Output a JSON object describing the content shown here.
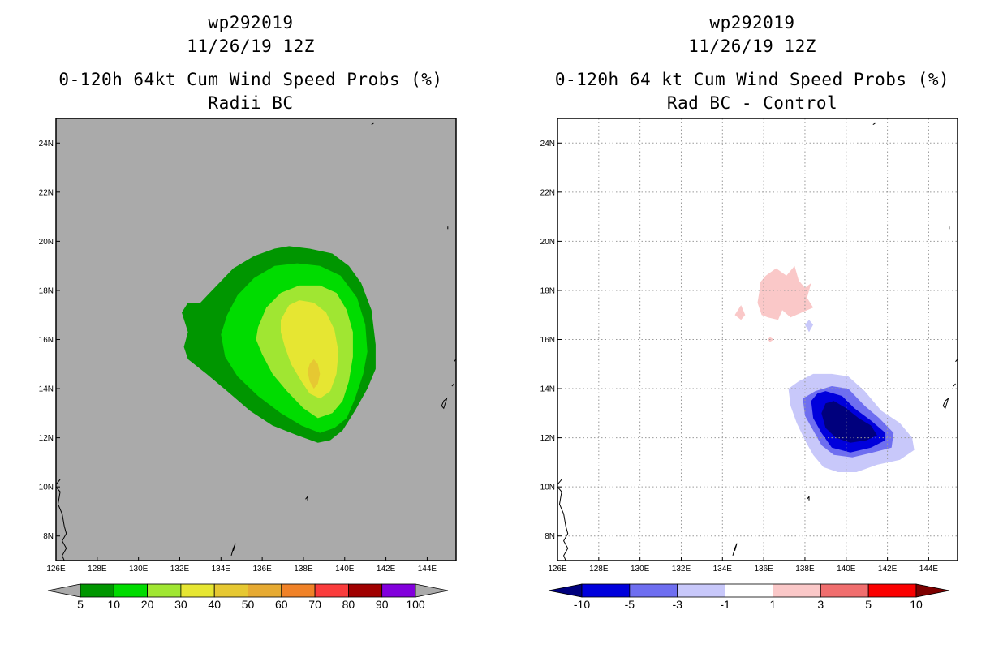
{
  "panels": [
    {
      "storm_id": "wp292019",
      "datetime": "11/26/19 12Z",
      "product": "0-120h 64kt Cum Wind Speed Probs (%)",
      "subtitle": "Radii BC"
    },
    {
      "storm_id": "wp292019",
      "datetime": "11/26/19 12Z",
      "product": "0-120h 64 kt Cum Wind Speed Probs (%)",
      "subtitle": "Rad BC - Control"
    }
  ],
  "chart_data": [
    {
      "type": "filled-contour-map",
      "title": "0-120h 64kt Cum Wind Speed Probs (%)",
      "subtitle": "Radii BC",
      "x_ticks": [
        "126E",
        "128E",
        "130E",
        "132E",
        "134E",
        "136E",
        "138E",
        "140E",
        "142E",
        "144E"
      ],
      "y_ticks": [
        "8N",
        "10N",
        "12N",
        "14N",
        "16N",
        "18N",
        "20N",
        "22N",
        "24N"
      ],
      "xlim": [
        126,
        145.4
      ],
      "ylim": [
        7,
        25
      ],
      "grid": false,
      "background": "#aaaaaa",
      "colorbar": {
        "labels": [
          "5",
          "10",
          "20",
          "30",
          "40",
          "50",
          "60",
          "70",
          "80",
          "90",
          "100"
        ],
        "colors": [
          "#009600",
          "#00dc00",
          "#a0e632",
          "#e6e632",
          "#e6c832",
          "#e6aa32",
          "#f08228",
          "#fa3c3c",
          "#a00000",
          "#8200dc"
        ],
        "end_color": "#aaaaaa"
      },
      "contours": [
        {
          "level": "5-10",
          "color": "#009600",
          "lonlat": [
            [
              133.0,
              17.5
            ],
            [
              133.8,
              18.2
            ],
            [
              134.6,
              18.9
            ],
            [
              135.6,
              19.4
            ],
            [
              136.6,
              19.7
            ],
            [
              137.3,
              19.8
            ],
            [
              138.3,
              19.7
            ],
            [
              139.4,
              19.5
            ],
            [
              140.2,
              19.0
            ],
            [
              140.8,
              18.3
            ],
            [
              141.3,
              17.2
            ],
            [
              141.5,
              15.8
            ],
            [
              141.5,
              14.8
            ],
            [
              141.1,
              14.0
            ],
            [
              140.5,
              13.1
            ],
            [
              139.9,
              12.3
            ],
            [
              139.3,
              11.9
            ],
            [
              138.7,
              11.8
            ],
            [
              137.7,
              12.1
            ],
            [
              136.5,
              12.5
            ],
            [
              135.4,
              13.1
            ],
            [
              134.3,
              13.9
            ],
            [
              133.3,
              14.6
            ],
            [
              132.4,
              15.2
            ],
            [
              132.2,
              15.7
            ],
            [
              132.4,
              16.3
            ],
            [
              132.1,
              17.1
            ],
            [
              132.4,
              17.5
            ]
          ]
        },
        {
          "level": "10-20",
          "color": "#00dc00",
          "lonlat": [
            [
              134.3,
              17.0
            ],
            [
              134.8,
              17.8
            ],
            [
              135.6,
              18.5
            ],
            [
              136.6,
              19.0
            ],
            [
              137.7,
              19.1
            ],
            [
              138.8,
              19.0
            ],
            [
              139.8,
              18.6
            ],
            [
              140.6,
              17.7
            ],
            [
              141.0,
              16.6
            ],
            [
              141.1,
              15.5
            ],
            [
              140.9,
              14.6
            ],
            [
              140.5,
              13.6
            ],
            [
              140.1,
              12.8
            ],
            [
              139.5,
              12.4
            ],
            [
              138.8,
              12.2
            ],
            [
              137.9,
              12.5
            ],
            [
              136.9,
              13.0
            ],
            [
              135.8,
              13.7
            ],
            [
              134.8,
              14.5
            ],
            [
              134.2,
              15.3
            ],
            [
              134.0,
              16.2
            ]
          ]
        },
        {
          "level": "20-30",
          "color": "#a0e632",
          "lonlat": [
            [
              135.8,
              16.5
            ],
            [
              136.2,
              17.3
            ],
            [
              136.9,
              17.9
            ],
            [
              137.8,
              18.2
            ],
            [
              138.8,
              18.2
            ],
            [
              139.6,
              17.9
            ],
            [
              140.1,
              17.2
            ],
            [
              140.4,
              16.3
            ],
            [
              140.4,
              15.3
            ],
            [
              140.2,
              14.3
            ],
            [
              139.9,
              13.5
            ],
            [
              139.4,
              13.0
            ],
            [
              138.7,
              12.8
            ],
            [
              138.0,
              13.2
            ],
            [
              137.2,
              13.9
            ],
            [
              136.5,
              14.6
            ],
            [
              136.0,
              15.4
            ],
            [
              135.7,
              16.0
            ]
          ]
        },
        {
          "level": "30-40",
          "color": "#e6e632",
          "lonlat": [
            [
              136.9,
              16.8
            ],
            [
              137.3,
              17.4
            ],
            [
              137.8,
              17.6
            ],
            [
              138.5,
              17.5
            ],
            [
              139.1,
              17.1
            ],
            [
              139.5,
              16.4
            ],
            [
              139.7,
              15.5
            ],
            [
              139.6,
              14.6
            ],
            [
              139.3,
              13.9
            ],
            [
              138.8,
              13.6
            ],
            [
              138.3,
              13.8
            ],
            [
              137.9,
              14.3
            ],
            [
              137.4,
              15.0
            ],
            [
              137.1,
              15.7
            ],
            [
              136.9,
              16.3
            ]
          ]
        },
        {
          "level": "40-50",
          "color": "#e6c832",
          "lonlat": [
            [
              138.5,
              15.2
            ],
            [
              138.7,
              15.0
            ],
            [
              138.8,
              14.6
            ],
            [
              138.7,
              14.2
            ],
            [
              138.5,
              14.0
            ],
            [
              138.3,
              14.3
            ],
            [
              138.2,
              14.7
            ],
            [
              138.3,
              15.0
            ]
          ]
        }
      ],
      "coastlines": "Philippines (Mindanao east coast), Palau, Guam, Marianas"
    },
    {
      "type": "filled-contour-map",
      "title": "0-120h 64 kt Cum Wind Speed Probs (%)",
      "subtitle": "Rad BC - Control",
      "x_ticks": [
        "126E",
        "128E",
        "130E",
        "132E",
        "134E",
        "136E",
        "138E",
        "140E",
        "142E",
        "144E"
      ],
      "y_ticks": [
        "8N",
        "10N",
        "12N",
        "14N",
        "16N",
        "18N",
        "20N",
        "22N",
        "24N"
      ],
      "xlim": [
        126,
        145.4
      ],
      "ylim": [
        7,
        25
      ],
      "grid": true,
      "background": "#ffffff",
      "colorbar": {
        "labels": [
          "-10",
          "-5",
          "-3",
          "-1",
          "1",
          "3",
          "5",
          "10"
        ],
        "colors": [
          "#0000dc",
          "#6e6ef0",
          "#c8c8fa",
          "#ffffff",
          "#fac8c8",
          "#f06e6e",
          "#fa0000"
        ],
        "end_low": "#00007d",
        "end_high": "#7d0000"
      },
      "contours": [
        {
          "level": "1-3",
          "color": "#fac8c8",
          "lonlat": [
            [
              135.9,
              17.0
            ],
            [
              135.7,
              17.5
            ],
            [
              135.8,
              18.0
            ],
            [
              135.8,
              18.3
            ],
            [
              136.1,
              18.6
            ],
            [
              136.6,
              18.9
            ],
            [
              137.1,
              18.6
            ],
            [
              137.5,
              19.0
            ],
            [
              137.7,
              18.4
            ],
            [
              138.0,
              18.1
            ],
            [
              138.3,
              18.3
            ],
            [
              138.1,
              17.7
            ],
            [
              138.4,
              17.3
            ],
            [
              137.3,
              16.9
            ],
            [
              136.9,
              17.2
            ],
            [
              136.7,
              16.8
            ],
            [
              136.2,
              16.9
            ]
          ]
        },
        {
          "level": "1-3",
          "color": "#fac8c8",
          "lonlat": [
            [
              134.6,
              17.0
            ],
            [
              134.9,
              17.4
            ],
            [
              135.1,
              17.0
            ],
            [
              134.9,
              16.8
            ]
          ]
        },
        {
          "level": "1-3",
          "color": "#fac8c8",
          "lonlat": [
            [
              136.2,
              16.0
            ],
            [
              136.3,
              16.1
            ],
            [
              136.5,
              16.0
            ],
            [
              136.3,
              15.9
            ]
          ]
        },
        {
          "level": "-3 to -1",
          "color": "#c8c8fa",
          "lonlat": [
            [
              138.0,
              16.6
            ],
            [
              138.2,
              16.8
            ],
            [
              138.4,
              16.6
            ],
            [
              138.2,
              16.3
            ]
          ]
        },
        {
          "level": "-3 to -1",
          "color": "#c8c8fa",
          "lonlat": [
            [
              137.2,
              14.0
            ],
            [
              137.3,
              13.3
            ],
            [
              137.6,
              12.6
            ],
            [
              138.0,
              11.9
            ],
            [
              138.4,
              11.3
            ],
            [
              138.9,
              10.8
            ],
            [
              139.6,
              10.6
            ],
            [
              140.5,
              10.6
            ],
            [
              141.5,
              10.9
            ],
            [
              142.6,
              11.1
            ],
            [
              143.3,
              11.5
            ],
            [
              143.2,
              12.0
            ],
            [
              142.6,
              12.6
            ],
            [
              141.7,
              13.1
            ],
            [
              140.9,
              13.9
            ],
            [
              140.1,
              14.5
            ],
            [
              139.3,
              14.6
            ],
            [
              138.4,
              14.6
            ],
            [
              137.7,
              14.3
            ]
          ]
        },
        {
          "level": "-5 to -3",
          "color": "#6e6ef0",
          "lonlat": [
            [
              137.9,
              13.6
            ],
            [
              138.0,
              12.9
            ],
            [
              138.4,
              12.3
            ],
            [
              138.8,
              11.7
            ],
            [
              139.4,
              11.3
            ],
            [
              140.3,
              11.2
            ],
            [
              141.3,
              11.4
            ],
            [
              142.2,
              11.6
            ],
            [
              142.3,
              12.2
            ],
            [
              141.6,
              12.8
            ],
            [
              140.9,
              13.3
            ],
            [
              140.1,
              14.0
            ],
            [
              139.3,
              14.1
            ],
            [
              138.5,
              13.9
            ]
          ]
        },
        {
          "level": "-10 to -5",
          "color": "#0000dc",
          "lonlat": [
            [
              138.3,
              13.5
            ],
            [
              138.4,
              12.8
            ],
            [
              138.8,
              12.2
            ],
            [
              139.3,
              11.6
            ],
            [
              140.2,
              11.4
            ],
            [
              141.2,
              11.6
            ],
            [
              141.9,
              11.9
            ],
            [
              141.9,
              12.2
            ],
            [
              141.2,
              12.7
            ],
            [
              140.4,
              13.2
            ],
            [
              139.8,
              13.7
            ],
            [
              139.0,
              13.9
            ],
            [
              138.6,
              13.8
            ]
          ]
        },
        {
          "level": "<-10",
          "color": "#00007d",
          "lonlat": [
            [
              138.8,
              13.0
            ],
            [
              139.0,
              12.4
            ],
            [
              139.5,
              12.0
            ],
            [
              140.2,
              11.8
            ],
            [
              141.0,
              11.9
            ],
            [
              141.5,
              12.1
            ],
            [
              141.2,
              12.5
            ],
            [
              140.6,
              12.8
            ],
            [
              140.0,
              13.2
            ],
            [
              139.4,
              13.5
            ],
            [
              139.0,
              13.4
            ]
          ]
        }
      ],
      "coastlines": "Philippines (Mindanao east coast), Palau, Guam, Marianas"
    }
  ]
}
